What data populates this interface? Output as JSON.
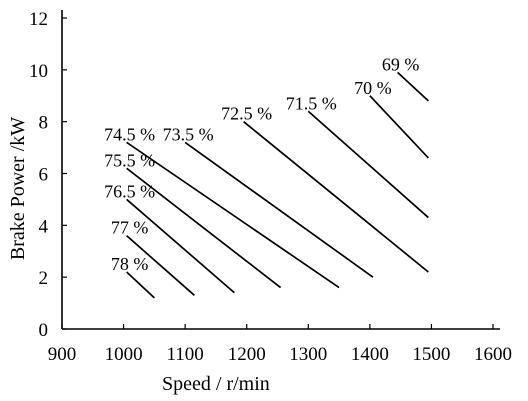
{
  "chart_data": {
    "type": "line",
    "xlabel": "Speed / r/min",
    "ylabel": "Brake Power /kW",
    "xlim": [
      900,
      1600
    ],
    "ylim": [
      0,
      12
    ],
    "x_ticks": [
      900,
      1000,
      1100,
      1200,
      1300,
      1400,
      1500,
      1600
    ],
    "y_ticks": [
      0,
      2,
      4,
      6,
      8,
      10,
      12
    ],
    "grid": false,
    "legend": "none",
    "series": [
      {
        "name": "78 %",
        "x": [
          1005,
          1050
        ],
        "y": [
          2.2,
          1.2
        ]
      },
      {
        "name": "77 %",
        "x": [
          1005,
          1115
        ],
        "y": [
          3.6,
          1.3
        ]
      },
      {
        "name": "76.5 %",
        "x": [
          1005,
          1180
        ],
        "y": [
          5.0,
          1.4
        ]
      },
      {
        "name": "75.5 %",
        "x": [
          1005,
          1255
        ],
        "y": [
          6.2,
          1.6
        ]
      },
      {
        "name": "74.5 %",
        "x": [
          1005,
          1350
        ],
        "y": [
          7.2,
          1.6
        ]
      },
      {
        "name": "73.5 %",
        "x": [
          1100,
          1405
        ],
        "y": [
          7.2,
          2.0
        ]
      },
      {
        "name": "72.5 %",
        "x": [
          1195,
          1495
        ],
        "y": [
          8.0,
          2.2
        ]
      },
      {
        "name": "71.5 %",
        "x": [
          1300,
          1495
        ],
        "y": [
          8.4,
          4.3
        ]
      },
      {
        "name": "70 %",
        "x": [
          1400,
          1495
        ],
        "y": [
          9.0,
          6.6
        ]
      },
      {
        "name": "69 %",
        "x": [
          1445,
          1495
        ],
        "y": [
          9.9,
          8.8
        ]
      }
    ]
  }
}
